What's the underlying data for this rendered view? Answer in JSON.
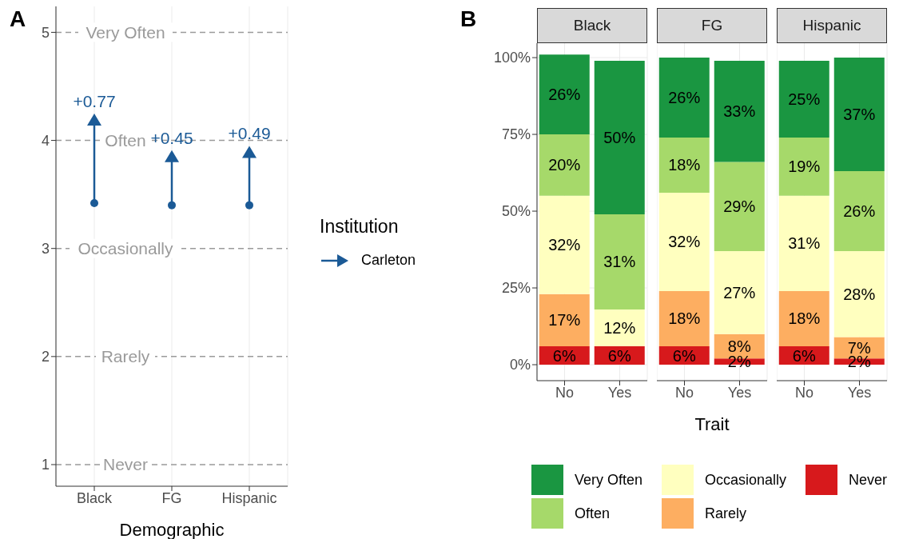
{
  "chart_data": [
    {
      "type": "scatter",
      "annotations": [
        "A",
        {
          "text": "+0.77",
          "x": "Black",
          "y": 4.19
        },
        {
          "text": "+0.45",
          "x": "FG",
          "y": 3.85
        },
        {
          "text": "+0.49",
          "x": "Hispanic",
          "y": 3.89
        }
      ],
      "categories": [
        "Black",
        "FG",
        "Hispanic"
      ],
      "xlabel": "Demographic",
      "legend_title": "Institution",
      "legend": "right",
      "series": [
        {
          "color": "#1b5a96",
          "marker": "circle",
          "values": [
            3.42,
            3.4,
            3.4
          ]
        },
        {
          "name": "Carleton",
          "color": "#1b5a96",
          "marker": "triangle",
          "values": [
            4.19,
            3.85,
            3.89
          ]
        }
      ],
      "ylim": [
        0.8,
        5.24
      ],
      "yticks": [
        1,
        2,
        3,
        4,
        5
      ],
      "grid": "x",
      "ref_lines": [
        {
          "axis": "y",
          "value": 1,
          "label": "Never",
          "color": "#9a9a9a",
          "line_style": "dashed"
        },
        {
          "axis": "y",
          "value": 2,
          "label": "Rarely",
          "color": "#9a9a9a",
          "line_style": "dashed"
        },
        {
          "axis": "y",
          "value": 3,
          "label": "Occasionally",
          "color": "#9a9a9a",
          "line_style": "dashed"
        },
        {
          "axis": "y",
          "value": 4,
          "label": "Often",
          "color": "#9a9a9a",
          "line_style": "dashed"
        },
        {
          "axis": "y",
          "value": 5,
          "label": "Very Often",
          "color": "#9a9a9a",
          "line_style": "dashed"
        }
      ]
    },
    {
      "type": "bar",
      "stacked": true,
      "title": "Black",
      "annotations": [
        "B"
      ],
      "legend": "bottom",
      "categories": [
        "No",
        "Yes"
      ],
      "ylim": [
        -5.2,
        104.7
      ],
      "yticks": [
        {
          "value": 0,
          "label": "0%"
        },
        {
          "value": 25,
          "label": "25%"
        },
        {
          "value": 50,
          "label": "50%"
        },
        {
          "value": 75,
          "label": "75%"
        },
        {
          "value": 100,
          "label": "100%"
        }
      ],
      "grid": true,
      "series": [
        {
          "name": "Never",
          "color": "#d7191c",
          "values": [
            6,
            6
          ],
          "value_labels": [
            "6%",
            "6%"
          ]
        },
        {
          "name": "Rarely",
          "color": "#fdae61",
          "values": [
            17,
            null
          ],
          "value_labels": [
            "17%",
            null
          ]
        },
        {
          "name": "Occasionally",
          "color": "#ffffbf",
          "values": [
            32,
            12
          ],
          "value_labels": [
            "32%",
            "12%"
          ]
        },
        {
          "name": "Often",
          "color": "#a6d96a",
          "values": [
            20,
            31
          ],
          "value_labels": [
            "20%",
            "31%"
          ]
        },
        {
          "name": "Very Often",
          "color": "#1a9641",
          "values": [
            26,
            50
          ],
          "value_labels": [
            "26%",
            "50%"
          ]
        }
      ]
    },
    {
      "type": "bar",
      "stacked": true,
      "title": "FG",
      "xlabel": "Trait",
      "tick_labels": "x",
      "categories": [
        "No",
        "Yes"
      ],
      "ylim": [
        -5.2,
        104.7
      ],
      "yticks": [
        0,
        25,
        50,
        75,
        100
      ],
      "grid": true,
      "series": [
        {
          "color": "#d7191c",
          "values": [
            6,
            2
          ],
          "value_labels": [
            "6%",
            "2%"
          ]
        },
        {
          "color": "#fdae61",
          "values": [
            18,
            8
          ],
          "value_labels": [
            "18%",
            "8%"
          ]
        },
        {
          "color": "#ffffbf",
          "values": [
            32,
            27
          ],
          "value_labels": [
            "32%",
            "27%"
          ]
        },
        {
          "color": "#a6d96a",
          "values": [
            18,
            29
          ],
          "value_labels": [
            "18%",
            "29%"
          ]
        },
        {
          "color": "#1a9641",
          "values": [
            26,
            33
          ],
          "value_labels": [
            "26%",
            "33%"
          ]
        }
      ]
    },
    {
      "type": "bar",
      "stacked": true,
      "title": "Hispanic",
      "tick_labels": "x",
      "categories": [
        "No",
        "Yes"
      ],
      "ylim": [
        -5.2,
        104.7
      ],
      "yticks": [
        0,
        25,
        50,
        75,
        100
      ],
      "grid": true,
      "series": [
        {
          "color": "#d7191c",
          "values": [
            6,
            2
          ],
          "value_labels": [
            "6%",
            "2%"
          ]
        },
        {
          "color": "#fdae61",
          "values": [
            18,
            7
          ],
          "value_labels": [
            "18%",
            "7%"
          ]
        },
        {
          "color": "#ffffbf",
          "values": [
            31,
            28
          ],
          "value_labels": [
            "31%",
            "28%"
          ]
        },
        {
          "color": "#a6d96a",
          "values": [
            19,
            26
          ],
          "value_labels": [
            "19%",
            "26%"
          ]
        },
        {
          "color": "#1a9641",
          "values": [
            25,
            37
          ],
          "value_labels": [
            "25%",
            "37%"
          ]
        }
      ]
    }
  ]
}
